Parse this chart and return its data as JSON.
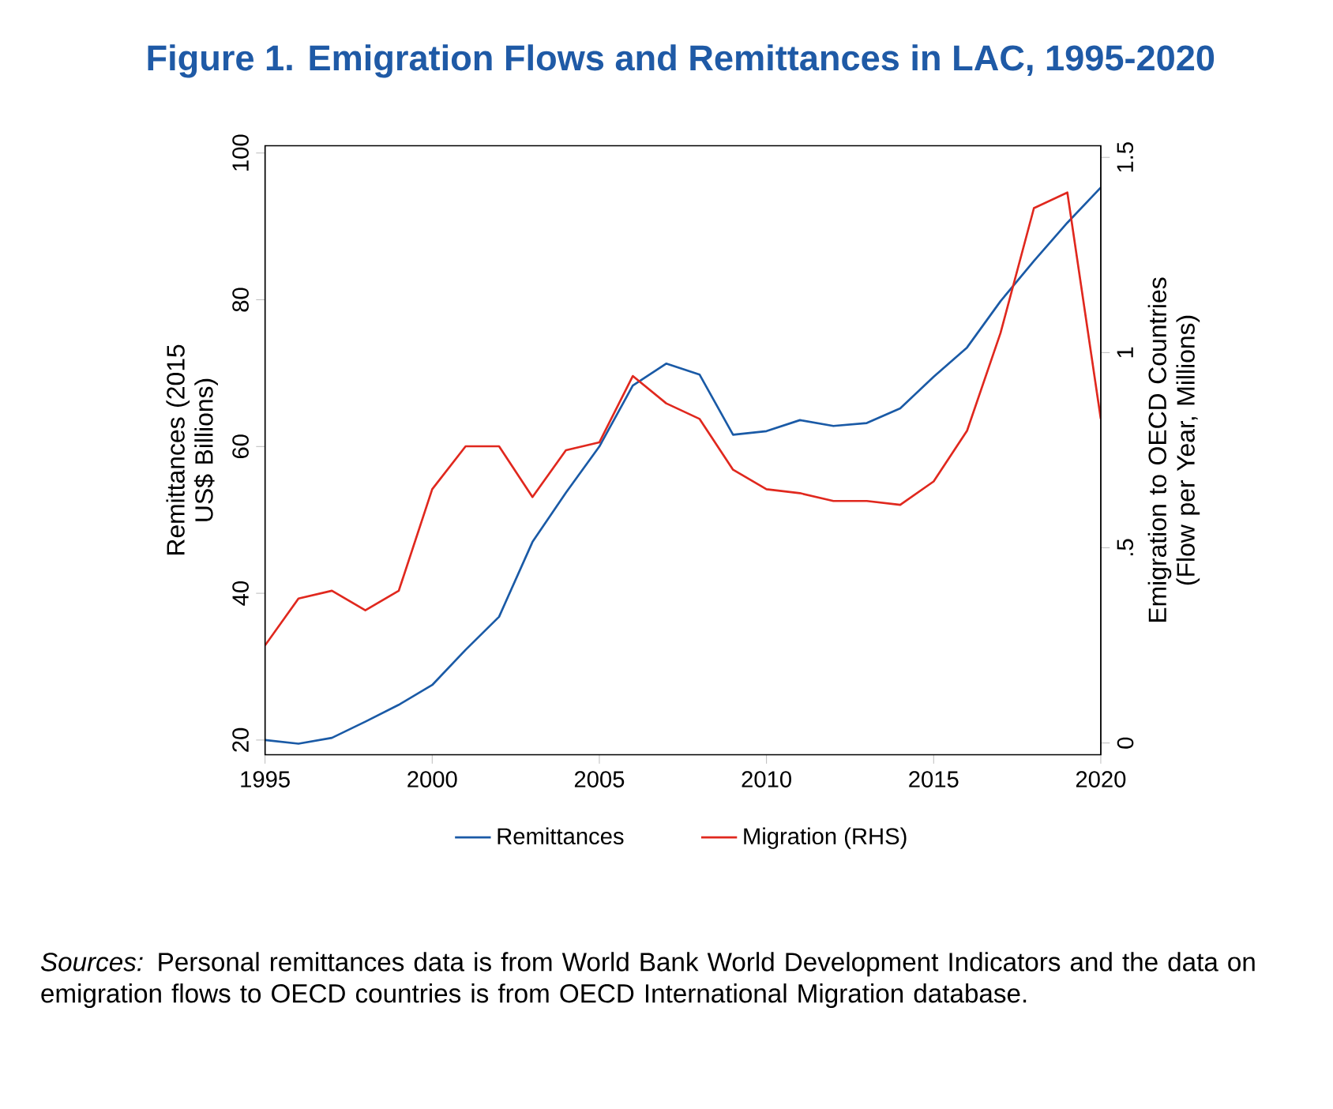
{
  "chart_data": {
    "type": "line",
    "title": "Figure 1. Emigration Flows and Remittances in LAC, 1995-2020",
    "ylabel": "Remittances (2015 US$ Billions)",
    "y2label": "Emigration to OECD Countries (Flow per Year, Millions)",
    "x": [
      1995,
      1996,
      1997,
      1998,
      1999,
      2000,
      2001,
      2002,
      2003,
      2004,
      2005,
      2006,
      2007,
      2008,
      2009,
      2010,
      2011,
      2012,
      2013,
      2014,
      2015,
      2016,
      2017,
      2018,
      2019,
      2020
    ],
    "series": [
      {
        "name": "Remittances",
        "color": "#1a5aa6",
        "values": [
          20,
          19.5,
          20.3,
          22.5,
          24.8,
          27.5,
          32.3,
          36.8,
          47,
          53.7,
          60,
          68.3,
          71.3,
          69.8,
          61.6,
          62.1,
          63.6,
          62.8,
          63.2,
          65.2,
          69.5,
          73.5,
          79.8,
          85.3,
          90.5,
          95.3
        ]
      },
      {
        "name": "Migration (RHS)",
        "color": "#e0281e",
        "axis": "y2",
        "values": [
          0.25,
          0.37,
          0.39,
          0.34,
          0.39,
          0.65,
          0.76,
          0.76,
          0.63,
          0.75,
          0.77,
          0.94,
          0.87,
          0.83,
          0.7,
          0.65,
          0.64,
          0.62,
          0.62,
          0.61,
          0.67,
          0.8,
          1.05,
          1.37,
          1.41,
          0.83
        ]
      }
    ],
    "xlim": [
      1995,
      2020
    ],
    "xticks": [
      1995,
      2000,
      2005,
      2010,
      2015,
      2020
    ],
    "ylim": [
      18,
      101
    ],
    "yticks": [
      20,
      40,
      60,
      80,
      100
    ],
    "y2lim": [
      -0.03,
      1.53
    ],
    "y2ticks": [
      0,
      {
        "value": 0.5,
        "label": ".5"
      },
      1,
      1.5
    ],
    "legend": "bottom",
    "grid": false,
    "marker": "none",
    "line_style": "solid",
    "annotations": [
      "*Sources:* Personal remittances data is from World Bank World Development Indicators and the data on emigration flows to OECD countries is from OECD International Migration database."
    ]
  }
}
